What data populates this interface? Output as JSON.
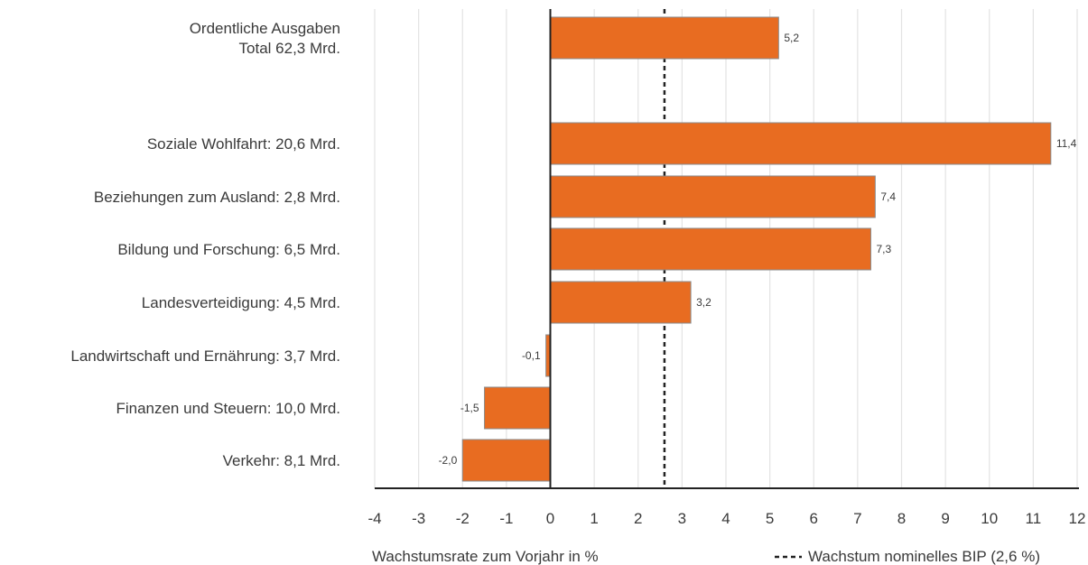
{
  "chart_data": {
    "type": "bar",
    "orientation": "horizontal",
    "categories": [
      [
        "Ordentliche Ausgaben",
        "Total 62,3 Mrd."
      ],
      [
        "Soziale Wohlfahrt: 20,6 Mrd."
      ],
      [
        "Beziehungen zum Ausland: 2,8 Mrd."
      ],
      [
        "Bildung und Forschung: 6,5 Mrd."
      ],
      [
        "Landesverteidigung: 4,5 Mrd."
      ],
      [
        "Landwirtschaft und Ernährung: 3,7 Mrd."
      ],
      [
        "Finanzen und Steuern: 10,0 Mrd."
      ],
      [
        "Verkehr: 8,1 Mrd."
      ]
    ],
    "values": [
      5.2,
      11.4,
      7.4,
      7.3,
      3.2,
      -0.1,
      -1.5,
      -2.0
    ],
    "value_labels": [
      "5,2",
      "11,4",
      "7,4",
      "7,3",
      "3,2",
      "-0,1",
      "-1,5",
      "-2,0"
    ],
    "xlim": [
      -4,
      12
    ],
    "xticks": [
      -4,
      -3,
      -2,
      -1,
      0,
      1,
      2,
      3,
      4,
      5,
      6,
      7,
      8,
      9,
      10,
      11,
      12
    ],
    "xlabel": "Wachstumsrate zum Vorjahr in %",
    "reference_line": {
      "value": 2.6,
      "label": "Wachstum nominelles BIP (2,6 %)",
      "style": "dashed"
    },
    "grid": "vertical",
    "colors": {
      "bar": "#E86C21",
      "bar_edge": "#8a8a8a",
      "grid": "#e3e3e3",
      "axis": "#222222"
    }
  }
}
